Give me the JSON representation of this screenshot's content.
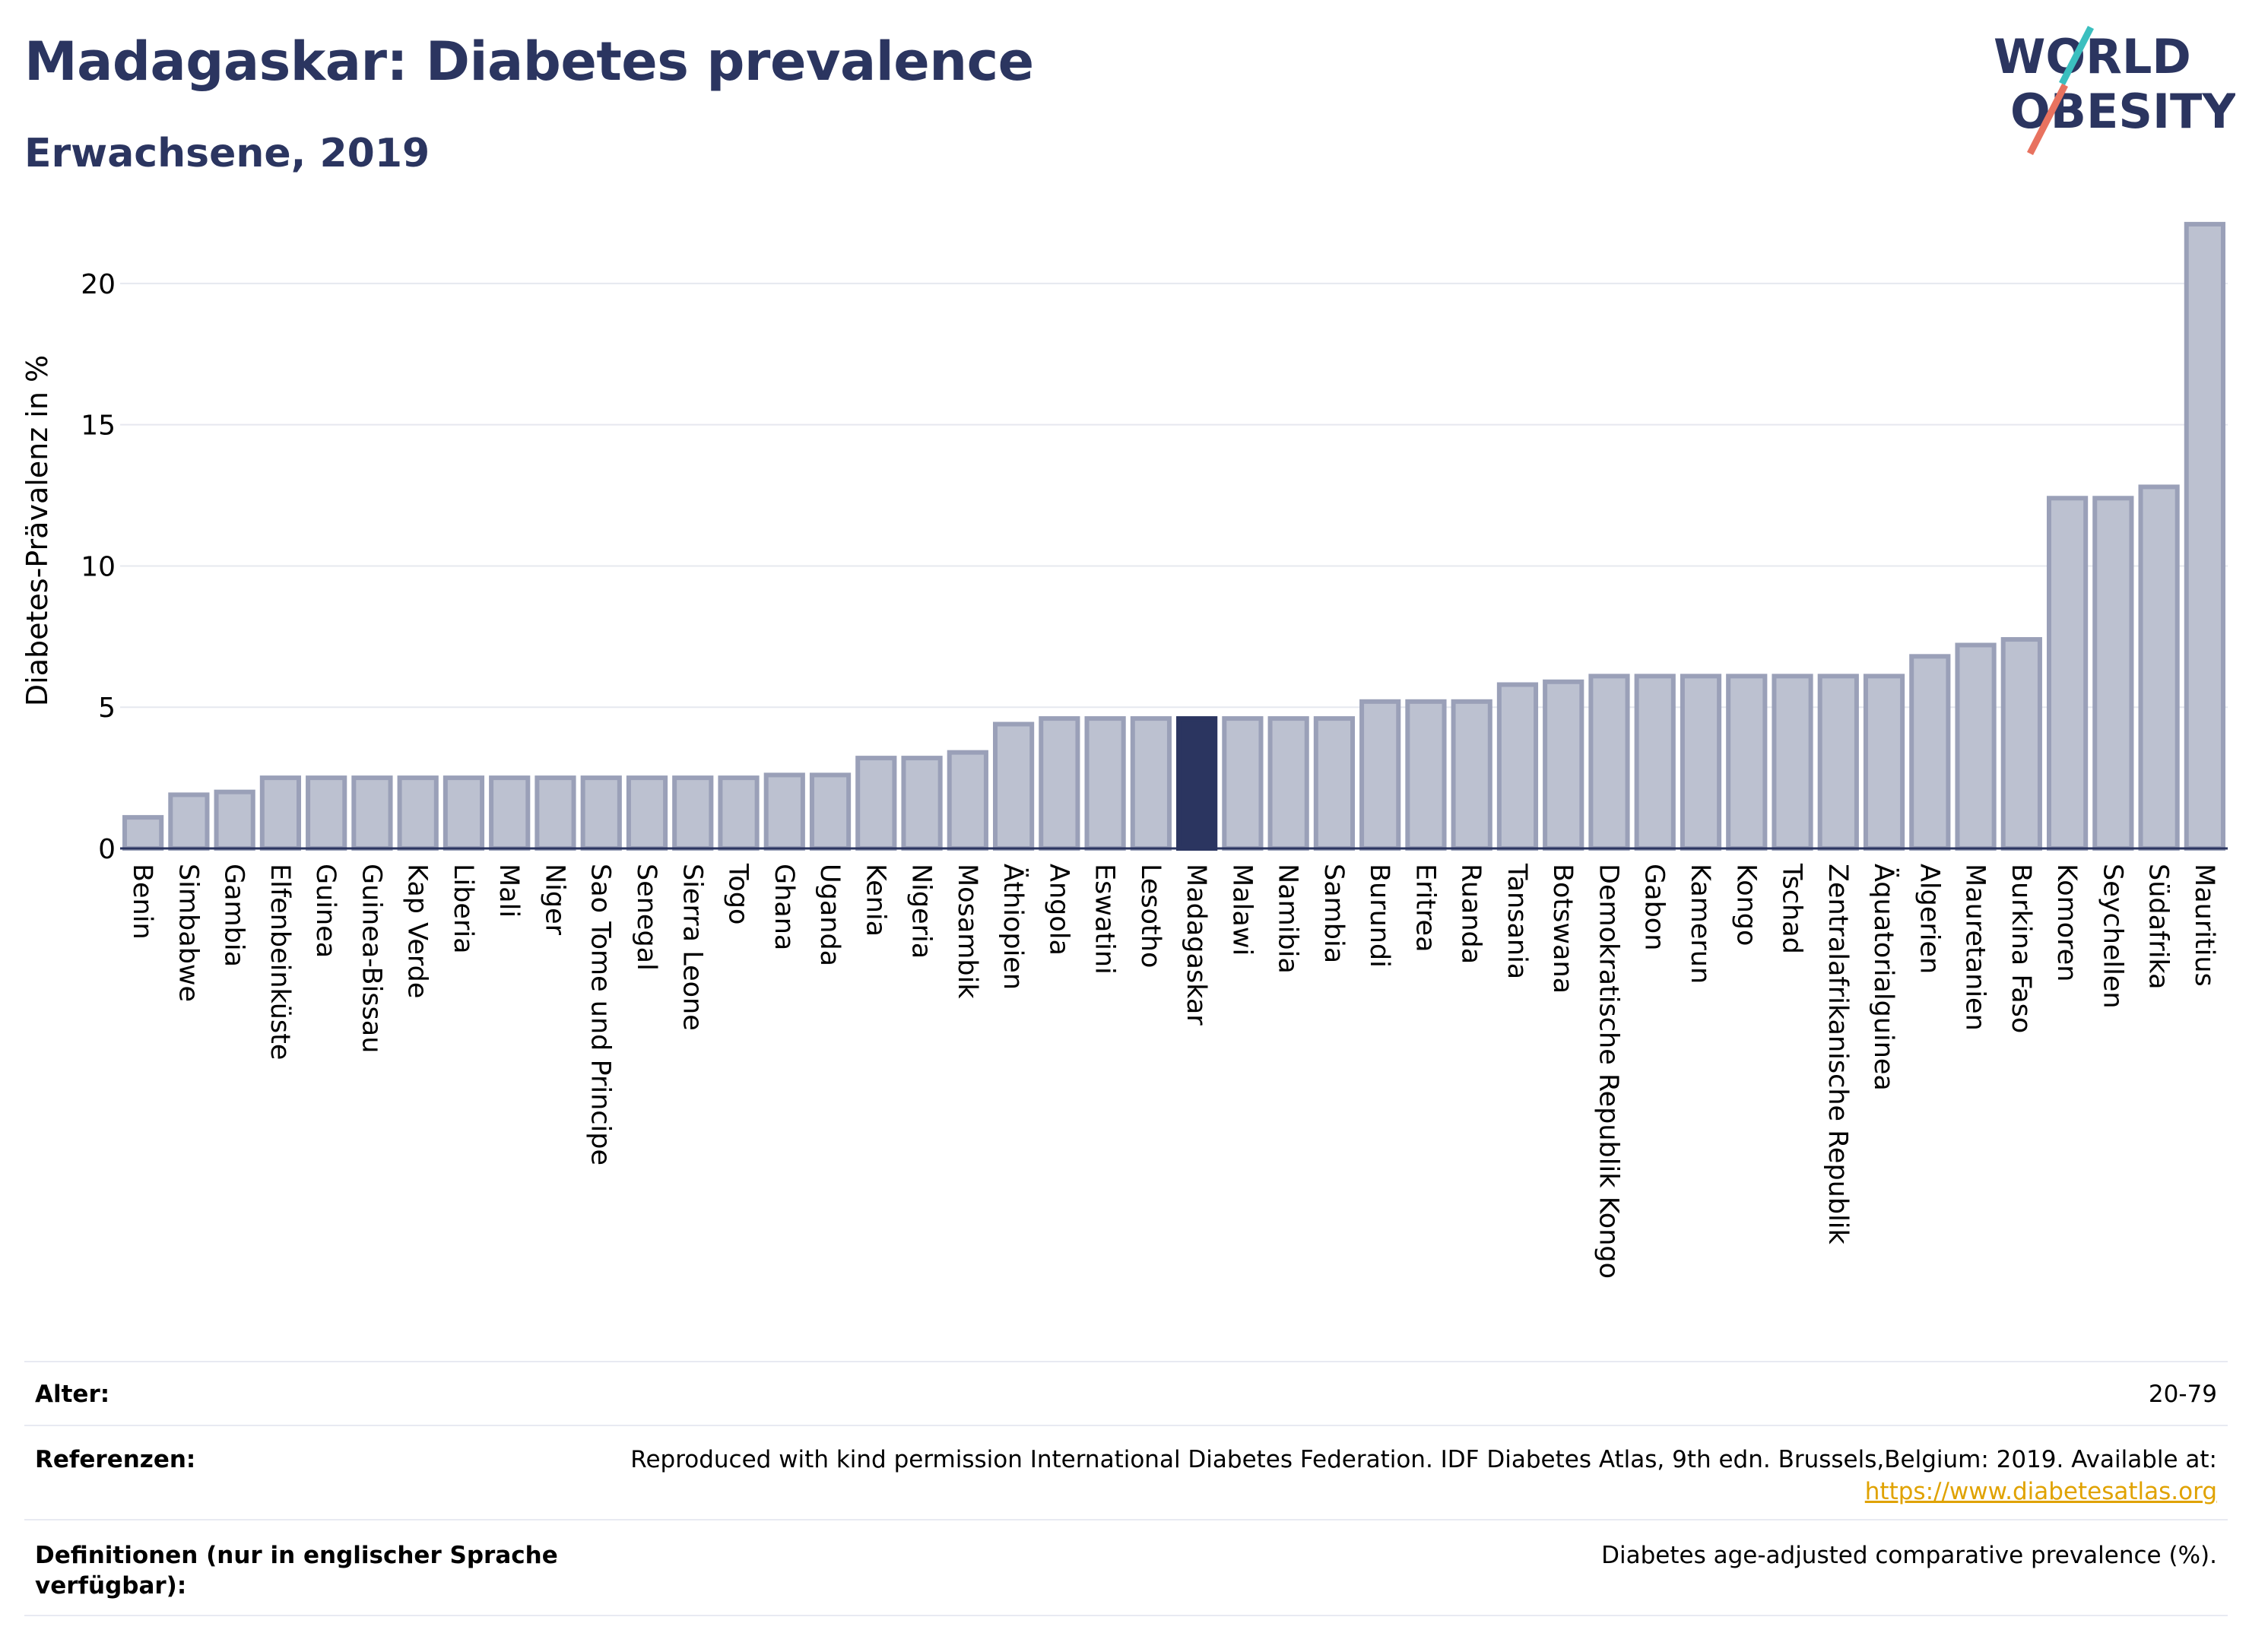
{
  "header": {
    "title": "Madagaskar: Diabetes prevalence",
    "subtitle": "Erwachsene, 2019"
  },
  "logo": {
    "line1": "WORLD",
    "line2": "OBESITY"
  },
  "colors": {
    "navy": "#2b3560",
    "bar_fill": "#bcc1d0",
    "bar_stroke": "#9aa0b8",
    "highlight": "#2b3560",
    "link": "#e0a200",
    "logo_teal": "#3bbfbf",
    "logo_coral": "#e8725f"
  },
  "chart_data": {
    "type": "bar",
    "ylabel": "Diabetes-Prävalenz in %",
    "ylim": [
      0,
      22.5
    ],
    "yticks": [
      0,
      5,
      10,
      15,
      20
    ],
    "highlight": "Madagaskar",
    "categories": [
      "Benin",
      "Simbabwe",
      "Gambia",
      "Elfenbeinküste",
      "Guinea",
      "Guinea-Bissau",
      "Kap Verde",
      "Liberia",
      "Mali",
      "Niger",
      "Sao Tome und Principe",
      "Senegal",
      "Sierra Leone",
      "Togo",
      "Ghana",
      "Uganda",
      "Kenia",
      "Nigeria",
      "Mosambik",
      "Äthiopien",
      "Angola",
      "Eswatini",
      "Lesotho",
      "Madagaskar",
      "Malawi",
      "Namibia",
      "Sambia",
      "Burundi",
      "Eritrea",
      "Ruanda",
      "Tansania",
      "Botswana",
      "Demokratische Republik Kongo",
      "Gabon",
      "Kamerun",
      "Kongo",
      "Tschad",
      "Zentralafrikanische Republik",
      "Äquatorialguinea",
      "Algerien",
      "Mauretanien",
      "Burkina Faso",
      "Komoren",
      "Seychellen",
      "Südafrika",
      "Mauritius"
    ],
    "values": [
      1.1,
      1.9,
      2.0,
      2.5,
      2.5,
      2.5,
      2.5,
      2.5,
      2.5,
      2.5,
      2.5,
      2.5,
      2.5,
      2.5,
      2.6,
      2.6,
      3.2,
      3.2,
      3.4,
      4.4,
      4.6,
      4.6,
      4.6,
      4.6,
      4.6,
      4.6,
      4.6,
      5.2,
      5.2,
      5.2,
      5.8,
      5.9,
      6.1,
      6.1,
      6.1,
      6.1,
      6.1,
      6.1,
      6.1,
      6.8,
      7.2,
      7.4,
      12.4,
      12.4,
      12.8,
      22.1
    ]
  },
  "info": {
    "age_label": "Alter:",
    "age_value": "20-79",
    "ref_label": "Referenzen:",
    "ref_value": "Reproduced with kind permission International Diabetes Federation. IDF Diabetes Atlas, 9th edn. Brussels,Belgium: 2019. Available at:",
    "ref_link": "https://www.diabetesatlas.org",
    "def_label_1": "Definitionen (nur in englischer Sprache",
    "def_label_2": "verfügbar):",
    "def_value": "Diabetes age-adjusted comparative prevalence (%)."
  }
}
